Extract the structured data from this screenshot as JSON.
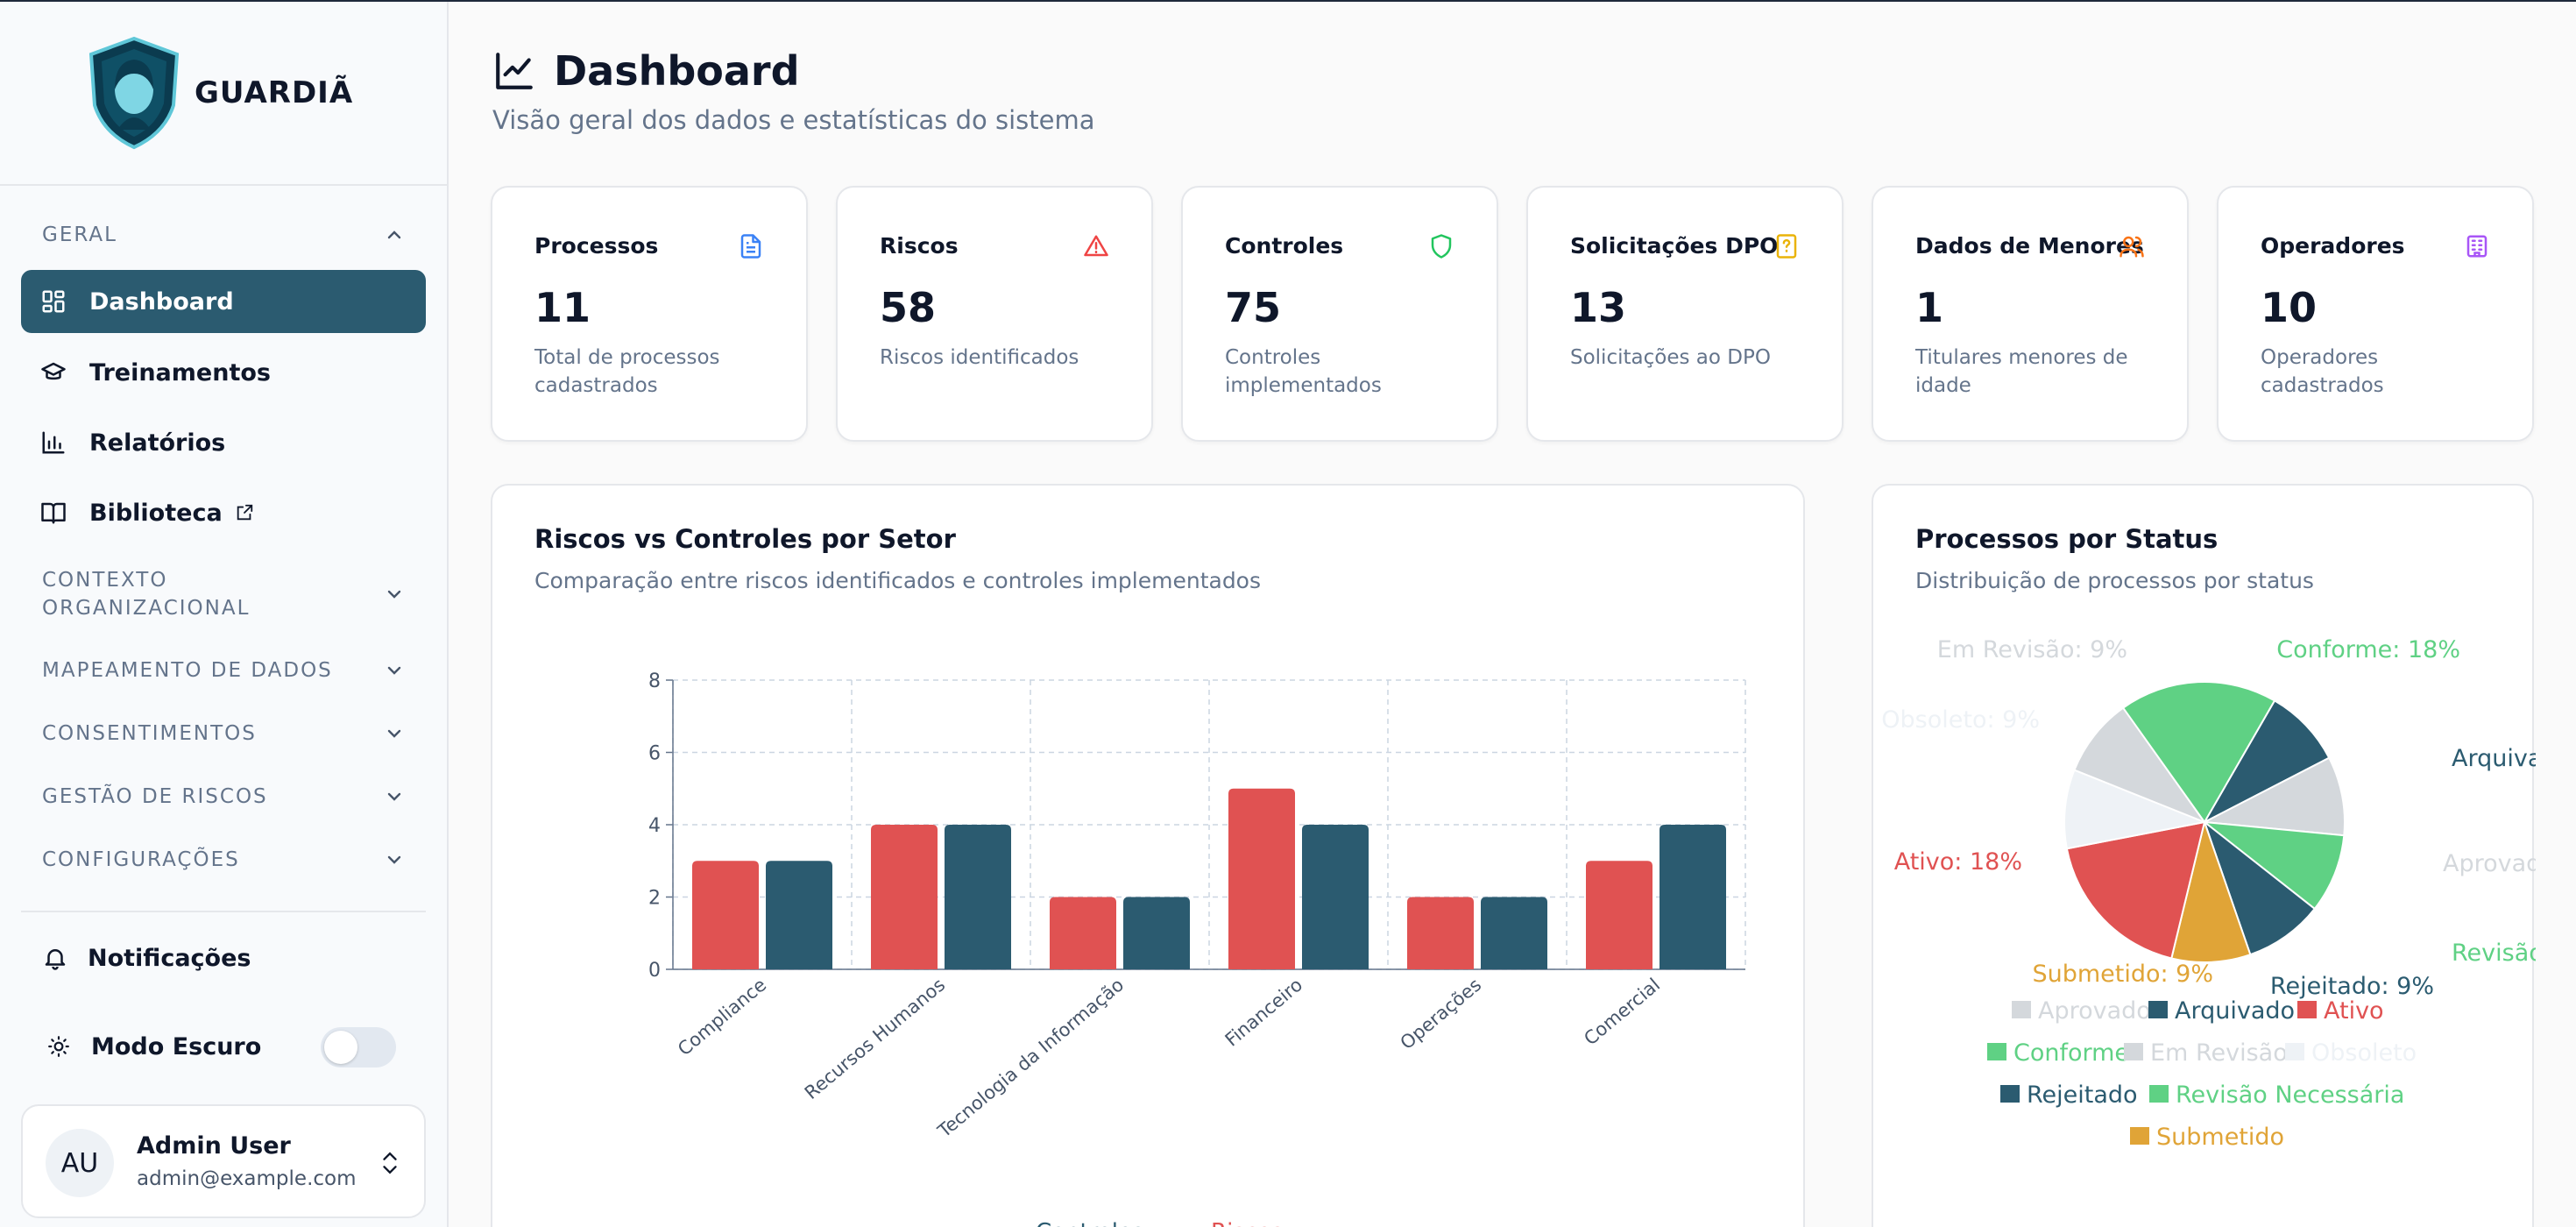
{
  "brand": {
    "name": "GUARDIÃ"
  },
  "sidebar": {
    "group_geral": "GERAL",
    "items": [
      {
        "label": "Dashboard",
        "active": true
      },
      {
        "label": "Treinamentos"
      },
      {
        "label": "Relatórios"
      },
      {
        "label": "Biblioteca"
      }
    ],
    "groups": [
      "CONTEXTO ORGANIZACIONAL",
      "MAPEAMENTO DE DADOS",
      "CONSENTIMENTOS",
      "GESTÃO DE RISCOS",
      "CONFIGURAÇÕES"
    ],
    "notifications": "Notificações",
    "dark_mode": "Modo Escuro",
    "dark_mode_on": false,
    "user": {
      "initials": "AU",
      "name": "Admin User",
      "email": "admin@example.com"
    }
  },
  "header": {
    "title": "Dashboard",
    "subtitle": "Visão geral dos dados e estatísticas do sistema"
  },
  "stats": [
    {
      "title": "Processos",
      "value": "11",
      "desc": "Total de processos cadastrados",
      "icon": "file-icon",
      "color": "#3b82f6"
    },
    {
      "title": "Riscos",
      "value": "58",
      "desc": "Riscos identificados",
      "icon": "warning-icon",
      "color": "#ef4444"
    },
    {
      "title": "Controles",
      "value": "75",
      "desc": "Controles implementados",
      "icon": "shield-icon",
      "color": "#22c55e"
    },
    {
      "title": "Solicitações DPO",
      "value": "13",
      "desc": "Solicitações ao DPO",
      "icon": "question-file-icon",
      "color": "#eab308"
    },
    {
      "title": "Dados de Menores",
      "value": "1",
      "desc": "Titulares menores de idade",
      "icon": "users-icon",
      "color": "#f97316"
    },
    {
      "title": "Operadores",
      "value": "10",
      "desc": "Operadores cadastrados",
      "icon": "building-icon",
      "color": "#a855f7"
    }
  ],
  "bar_card": {
    "title": "Riscos vs Controles por Setor",
    "subtitle": "Comparação entre riscos identificados e controles implementados"
  },
  "pie_card": {
    "title": "Processos por Status",
    "subtitle": "Distribuição de processos por status"
  },
  "chart_data": [
    {
      "type": "bar",
      "categories": [
        "Compliance",
        "Recursos Humanos",
        "Tecnologia da Informação",
        "Financeiro",
        "Operações",
        "Comercial"
      ],
      "series": [
        {
          "name": "Riscos",
          "values": [
            3,
            4,
            2,
            5,
            2,
            3
          ],
          "color": "#e05252"
        },
        {
          "name": "Controles",
          "values": [
            3,
            4,
            2,
            4,
            2,
            4
          ],
          "color": "#2b5b70"
        }
      ],
      "yticks": [
        "0",
        "2",
        "4",
        "6",
        "8"
      ],
      "ylim": [
        0,
        8
      ],
      "grid": true,
      "legend": [
        "Controles",
        "Riscos"
      ]
    },
    {
      "type": "pie",
      "slices": [
        {
          "name": "Arquivado",
          "value": 9,
          "color": "#2b5b70",
          "label": "Arquivado"
        },
        {
          "name": "Aprovado",
          "value": 9,
          "color": "#d4d8dc",
          "label": "Aprovado"
        },
        {
          "name": "Revisão Necessária",
          "value": 9,
          "color": "#5fd184",
          "label": "Revisão Neces"
        },
        {
          "name": "Rejeitado",
          "value": 9,
          "color": "#2b5b70",
          "label": "Rejeitado: 9%"
        },
        {
          "name": "Submetido",
          "value": 9,
          "color": "#e0a437",
          "label": "Submetido: 9%"
        },
        {
          "name": "Ativo",
          "value": 18,
          "color": "#e05252",
          "label": "Ativo: 18%"
        },
        {
          "name": "Obsoleto",
          "value": 9,
          "color": "#eef2f6",
          "label": "Obsoleto: 9%"
        },
        {
          "name": "Em Revisão",
          "value": 9,
          "color": "#d4d8dc",
          "label": "Em Revisão: 9%"
        },
        {
          "name": "Conforme",
          "value": 18,
          "color": "#5fd184",
          "label": "Conforme: 18%"
        }
      ],
      "legend": [
        {
          "name": "Aprovado",
          "color": "#d4d8dc"
        },
        {
          "name": "Arquivado",
          "color": "#2b5b70"
        },
        {
          "name": "Ativo",
          "color": "#e05252"
        },
        {
          "name": "Conforme",
          "color": "#5fd184"
        },
        {
          "name": "Em Revisão",
          "color": "#d4d8dc"
        },
        {
          "name": "Obsoleto",
          "color": "#eef2f6"
        },
        {
          "name": "Rejeitado",
          "color": "#2b5b70"
        },
        {
          "name": "Revisão Necessária",
          "color": "#5fd184"
        },
        {
          "name": "Submetido",
          "color": "#e0a437"
        }
      ]
    }
  ]
}
